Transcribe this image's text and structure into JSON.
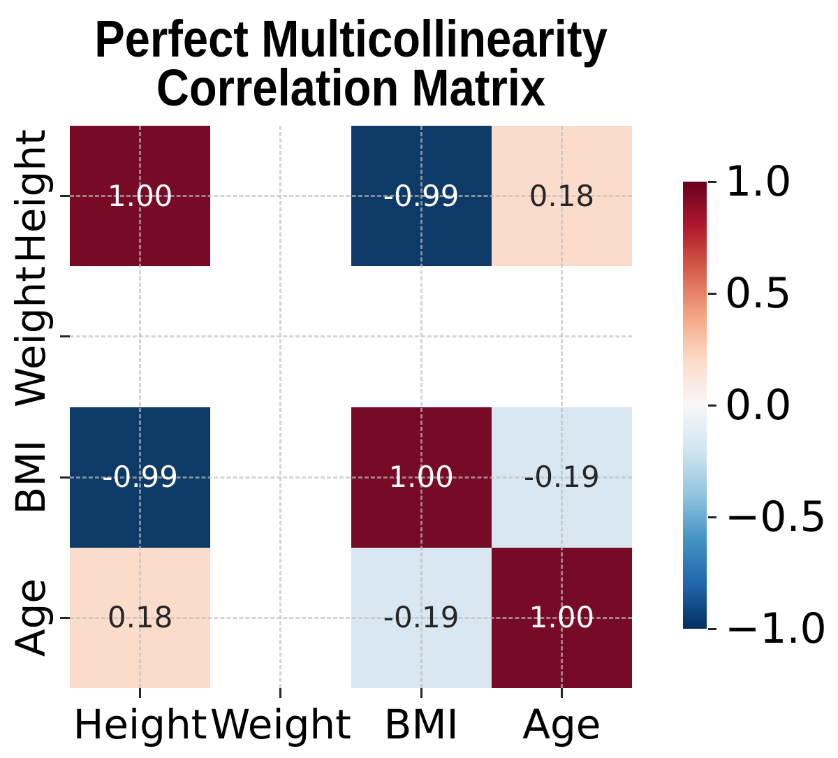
{
  "figure": {
    "title_line1": "Perfect Multicollinearity",
    "title_line2": "Correlation Matrix"
  },
  "chart_data": {
    "type": "heatmap",
    "title": "Perfect Multicollinearity Correlation Matrix",
    "variables": [
      "Height",
      "Weight",
      "BMI",
      "Age"
    ],
    "x_tick_labels": [
      "Height",
      "Weight",
      "BMI",
      "Age"
    ],
    "y_tick_labels": [
      "Height",
      "Weight",
      "BMI",
      "Age"
    ],
    "matrix": [
      [
        1.0,
        null,
        -0.99,
        0.18
      ],
      [
        null,
        null,
        null,
        null
      ],
      [
        -0.99,
        null,
        1.0,
        -0.19
      ],
      [
        0.18,
        null,
        -0.19,
        1.0
      ]
    ],
    "annotations": [
      [
        "1.00",
        null,
        "-0.99",
        "0.18"
      ],
      [
        null,
        null,
        null,
        null
      ],
      [
        "-0.99",
        null,
        "1.00",
        "-0.19"
      ],
      [
        "0.18",
        null,
        "-0.19",
        "1.00"
      ]
    ],
    "cell_colors": [
      [
        "#770b26",
        null,
        "#0d3a66",
        "#fbdccb"
      ],
      [
        null,
        null,
        null,
        null
      ],
      [
        "#0d3a66",
        null,
        "#770b26",
        "#d8e7f1"
      ],
      [
        "#fbdccb",
        null,
        "#d8e7f1",
        "#770b26"
      ]
    ],
    "text_colors": [
      [
        "#ffffff",
        null,
        "#ffffff",
        "#262626"
      ],
      [
        null,
        null,
        null,
        null
      ],
      [
        "#ffffff",
        null,
        "#ffffff",
        "#262626"
      ],
      [
        "#262626",
        null,
        "#262626",
        "#ffffff"
      ]
    ],
    "grid": true,
    "colorbar": {
      "colormap": "RdBu_r",
      "vmin": -1.0,
      "vmax": 1.0,
      "tick_labels": [
        "1.0",
        "0.5",
        "0.0",
        "−0.5",
        "−1.0"
      ],
      "tick_values": [
        1.0,
        0.5,
        0.0,
        -0.5,
        -1.0
      ],
      "gradient_stops": [
        {
          "pos": 0,
          "color": "#67001f"
        },
        {
          "pos": 10,
          "color": "#b2182b"
        },
        {
          "pos": 20,
          "color": "#d6604d"
        },
        {
          "pos": 30,
          "color": "#f4a582"
        },
        {
          "pos": 40,
          "color": "#fddbc7"
        },
        {
          "pos": 50,
          "color": "#f7f7f7"
        },
        {
          "pos": 60,
          "color": "#d1e5f0"
        },
        {
          "pos": 70,
          "color": "#92c5de"
        },
        {
          "pos": 80,
          "color": "#4393c3"
        },
        {
          "pos": 90,
          "color": "#2166ac"
        },
        {
          "pos": 100,
          "color": "#053061"
        }
      ]
    }
  }
}
